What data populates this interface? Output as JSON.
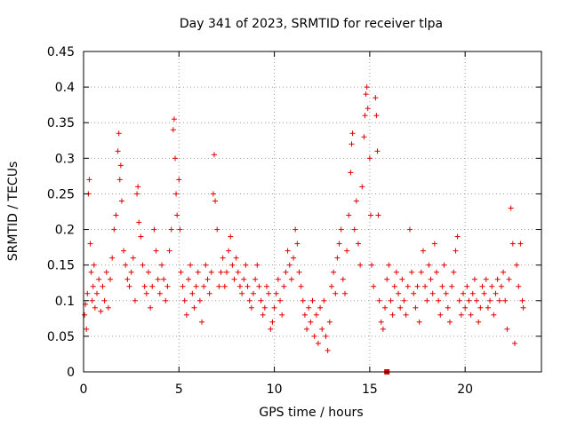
{
  "chart_data": {
    "type": "scatter",
    "title": "Day 341 of 2023, SRMTID for receiver tlpa",
    "xlabel": "GPS time / hours",
    "ylabel": "SRMTID / TECUs",
    "xlim": [
      0,
      24
    ],
    "ylim": [
      0,
      0.45
    ],
    "xticks": [
      0,
      5,
      10,
      15,
      20
    ],
    "yticks": [
      0,
      0.05,
      0.1,
      0.15,
      0.2,
      0.25,
      0.3,
      0.35,
      0.4,
      0.45
    ],
    "xtick_labels": [
      "0",
      "5",
      "10",
      "15",
      "20"
    ],
    "ytick_labels": [
      "0",
      "0.05",
      "0.1",
      "0.15",
      "0.2",
      "0.25",
      "0.3",
      "0.35",
      "0.4",
      "0.45"
    ],
    "grid": true,
    "marker": "+",
    "color": "#e00000",
    "series": [
      {
        "name": "SRMTID",
        "points": [
          [
            0.05,
            0.08
          ],
          [
            0.1,
            0.095
          ],
          [
            0.15,
            0.06
          ],
          [
            0.2,
            0.11
          ],
          [
            0.25,
            0.25
          ],
          [
            0.3,
            0.27
          ],
          [
            0.35,
            0.18
          ],
          [
            0.4,
            0.14
          ],
          [
            0.45,
            0.1
          ],
          [
            0.5,
            0.12
          ],
          [
            0.55,
            0.15
          ],
          [
            0.6,
            0.09
          ],
          [
            0.7,
            0.11
          ],
          [
            0.8,
            0.13
          ],
          [
            0.9,
            0.085
          ],
          [
            1.0,
            0.12
          ],
          [
            1.1,
            0.1
          ],
          [
            1.2,
            0.14
          ],
          [
            1.3,
            0.09
          ],
          [
            1.4,
            0.13
          ],
          [
            1.5,
            0.16
          ],
          [
            1.6,
            0.2
          ],
          [
            1.7,
            0.22
          ],
          [
            1.8,
            0.31
          ],
          [
            1.85,
            0.335
          ],
          [
            1.9,
            0.27
          ],
          [
            1.95,
            0.29
          ],
          [
            2.0,
            0.24
          ],
          [
            2.1,
            0.17
          ],
          [
            2.2,
            0.15
          ],
          [
            2.3,
            0.13
          ],
          [
            2.4,
            0.12
          ],
          [
            2.5,
            0.14
          ],
          [
            2.6,
            0.16
          ],
          [
            2.7,
            0.1
          ],
          [
            2.8,
            0.25
          ],
          [
            2.85,
            0.26
          ],
          [
            2.9,
            0.21
          ],
          [
            3.0,
            0.19
          ],
          [
            3.1,
            0.15
          ],
          [
            3.2,
            0.12
          ],
          [
            3.3,
            0.11
          ],
          [
            3.4,
            0.14
          ],
          [
            3.5,
            0.09
          ],
          [
            3.6,
            0.12
          ],
          [
            3.7,
            0.2
          ],
          [
            3.8,
            0.17
          ],
          [
            3.9,
            0.13
          ],
          [
            4.0,
            0.11
          ],
          [
            4.1,
            0.15
          ],
          [
            4.2,
            0.13
          ],
          [
            4.3,
            0.1
          ],
          [
            4.4,
            0.12
          ],
          [
            4.5,
            0.17
          ],
          [
            4.6,
            0.2
          ],
          [
            4.7,
            0.34
          ],
          [
            4.75,
            0.355
          ],
          [
            4.8,
            0.3
          ],
          [
            4.85,
            0.25
          ],
          [
            4.9,
            0.22
          ],
          [
            5.0,
            0.27
          ],
          [
            5.05,
            0.2
          ],
          [
            5.1,
            0.14
          ],
          [
            5.2,
            0.12
          ],
          [
            5.3,
            0.1
          ],
          [
            5.4,
            0.08
          ],
          [
            5.5,
            0.13
          ],
          [
            5.6,
            0.15
          ],
          [
            5.7,
            0.11
          ],
          [
            5.8,
            0.09
          ],
          [
            5.9,
            0.12
          ],
          [
            6.0,
            0.14
          ],
          [
            6.1,
            0.1
          ],
          [
            6.2,
            0.07
          ],
          [
            6.3,
            0.12
          ],
          [
            6.4,
            0.15
          ],
          [
            6.5,
            0.13
          ],
          [
            6.6,
            0.11
          ],
          [
            6.7,
            0.14
          ],
          [
            6.8,
            0.25
          ],
          [
            6.85,
            0.305
          ],
          [
            6.9,
            0.24
          ],
          [
            7.0,
            0.2
          ],
          [
            7.1,
            0.12
          ],
          [
            7.2,
            0.14
          ],
          [
            7.3,
            0.16
          ],
          [
            7.4,
            0.12
          ],
          [
            7.5,
            0.14
          ],
          [
            7.6,
            0.17
          ],
          [
            7.7,
            0.19
          ],
          [
            7.8,
            0.15
          ],
          [
            7.9,
            0.13
          ],
          [
            8.0,
            0.16
          ],
          [
            8.1,
            0.14
          ],
          [
            8.2,
            0.12
          ],
          [
            8.3,
            0.11
          ],
          [
            8.4,
            0.13
          ],
          [
            8.5,
            0.15
          ],
          [
            8.6,
            0.12
          ],
          [
            8.7,
            0.1
          ],
          [
            8.8,
            0.09
          ],
          [
            8.9,
            0.11
          ],
          [
            9.0,
            0.13
          ],
          [
            9.1,
            0.15
          ],
          [
            9.2,
            0.12
          ],
          [
            9.3,
            0.1
          ],
          [
            9.4,
            0.08
          ],
          [
            9.5,
            0.09
          ],
          [
            9.6,
            0.12
          ],
          [
            9.7,
            0.11
          ],
          [
            9.8,
            0.06
          ],
          [
            9.9,
            0.07
          ],
          [
            10.0,
            0.09
          ],
          [
            10.1,
            0.11
          ],
          [
            10.2,
            0.13
          ],
          [
            10.3,
            0.1
          ],
          [
            10.4,
            0.08
          ],
          [
            10.5,
            0.12
          ],
          [
            10.6,
            0.14
          ],
          [
            10.7,
            0.17
          ],
          [
            10.8,
            0.15
          ],
          [
            10.9,
            0.13
          ],
          [
            11.0,
            0.16
          ],
          [
            11.1,
            0.2
          ],
          [
            11.2,
            0.18
          ],
          [
            11.3,
            0.14
          ],
          [
            11.4,
            0.12
          ],
          [
            11.5,
            0.1
          ],
          [
            11.6,
            0.08
          ],
          [
            11.7,
            0.06
          ],
          [
            11.8,
            0.09
          ],
          [
            11.9,
            0.07
          ],
          [
            12.0,
            0.1
          ],
          [
            12.1,
            0.05
          ],
          [
            12.2,
            0.08
          ],
          [
            12.3,
            0.04
          ],
          [
            12.4,
            0.09
          ],
          [
            12.5,
            0.06
          ],
          [
            12.6,
            0.1
          ],
          [
            12.7,
            0.05
          ],
          [
            12.8,
            0.03
          ],
          [
            12.9,
            0.07
          ],
          [
            13.0,
            0.12
          ],
          [
            13.1,
            0.14
          ],
          [
            13.2,
            0.11
          ],
          [
            13.3,
            0.16
          ],
          [
            13.4,
            0.18
          ],
          [
            13.5,
            0.2
          ],
          [
            13.6,
            0.13
          ],
          [
            13.7,
            0.11
          ],
          [
            13.8,
            0.17
          ],
          [
            13.9,
            0.22
          ],
          [
            14.0,
            0.28
          ],
          [
            14.05,
            0.32
          ],
          [
            14.1,
            0.335
          ],
          [
            14.2,
            0.2
          ],
          [
            14.3,
            0.24
          ],
          [
            14.4,
            0.18
          ],
          [
            14.5,
            0.15
          ],
          [
            14.6,
            0.26
          ],
          [
            14.7,
            0.33
          ],
          [
            14.75,
            0.36
          ],
          [
            14.8,
            0.39
          ],
          [
            14.85,
            0.4
          ],
          [
            14.9,
            0.37
          ],
          [
            15.0,
            0.3
          ],
          [
            15.05,
            0.22
          ],
          [
            15.1,
            0.15
          ],
          [
            15.2,
            0.12
          ],
          [
            15.3,
            0.385
          ],
          [
            15.35,
            0.36
          ],
          [
            15.4,
            0.31
          ],
          [
            15.45,
            0.22
          ],
          [
            15.5,
            0.1
          ],
          [
            15.6,
            0.07
          ],
          [
            15.7,
            0.06
          ],
          [
            15.8,
            0.09
          ],
          [
            15.9,
            0.13
          ],
          [
            16.0,
            0.15
          ],
          [
            16.1,
            0.1
          ],
          [
            16.2,
            0.08
          ],
          [
            16.3,
            0.12
          ],
          [
            16.4,
            0.14
          ],
          [
            16.5,
            0.11
          ],
          [
            16.6,
            0.09
          ],
          [
            16.7,
            0.13
          ],
          [
            16.8,
            0.1
          ],
          [
            16.9,
            0.08
          ],
          [
            17.0,
            0.12
          ],
          [
            17.1,
            0.2
          ],
          [
            17.2,
            0.14
          ],
          [
            17.3,
            0.11
          ],
          [
            17.4,
            0.09
          ],
          [
            17.5,
            0.12
          ],
          [
            17.6,
            0.07
          ],
          [
            17.7,
            0.14
          ],
          [
            17.8,
            0.17
          ],
          [
            17.9,
            0.12
          ],
          [
            18.0,
            0.1
          ],
          [
            18.1,
            0.15
          ],
          [
            18.2,
            0.13
          ],
          [
            18.3,
            0.11
          ],
          [
            18.4,
            0.18
          ],
          [
            18.5,
            0.14
          ],
          [
            18.6,
            0.1
          ],
          [
            18.7,
            0.08
          ],
          [
            18.8,
            0.12
          ],
          [
            18.9,
            0.15
          ],
          [
            19.0,
            0.11
          ],
          [
            19.1,
            0.09
          ],
          [
            19.2,
            0.07
          ],
          [
            19.3,
            0.12
          ],
          [
            19.4,
            0.14
          ],
          [
            19.5,
            0.17
          ],
          [
            19.6,
            0.19
          ],
          [
            19.7,
            0.1
          ],
          [
            19.8,
            0.08
          ],
          [
            19.9,
            0.11
          ],
          [
            20.0,
            0.09
          ],
          [
            20.1,
            0.12
          ],
          [
            20.2,
            0.1
          ],
          [
            20.3,
            0.08
          ],
          [
            20.4,
            0.11
          ],
          [
            20.5,
            0.13
          ],
          [
            20.6,
            0.1
          ],
          [
            20.7,
            0.07
          ],
          [
            20.8,
            0.09
          ],
          [
            20.9,
            0.12
          ],
          [
            21.0,
            0.11
          ],
          [
            21.1,
            0.13
          ],
          [
            21.2,
            0.09
          ],
          [
            21.3,
            0.1
          ],
          [
            21.4,
            0.12
          ],
          [
            21.5,
            0.08
          ],
          [
            21.6,
            0.11
          ],
          [
            21.7,
            0.13
          ],
          [
            21.8,
            0.1
          ],
          [
            21.9,
            0.12
          ],
          [
            22.0,
            0.14
          ],
          [
            22.1,
            0.1
          ],
          [
            22.2,
            0.06
          ],
          [
            22.3,
            0.13
          ],
          [
            22.4,
            0.23
          ],
          [
            22.5,
            0.18
          ],
          [
            22.6,
            0.04
          ],
          [
            22.7,
            0.15
          ],
          [
            22.8,
            0.12
          ],
          [
            22.9,
            0.18
          ],
          [
            23.0,
            0.1
          ],
          [
            23.05,
            0.09
          ]
        ]
      }
    ],
    "special_marks": [
      {
        "x": 15.9,
        "y": 0.0,
        "shape": "square"
      }
    ]
  }
}
